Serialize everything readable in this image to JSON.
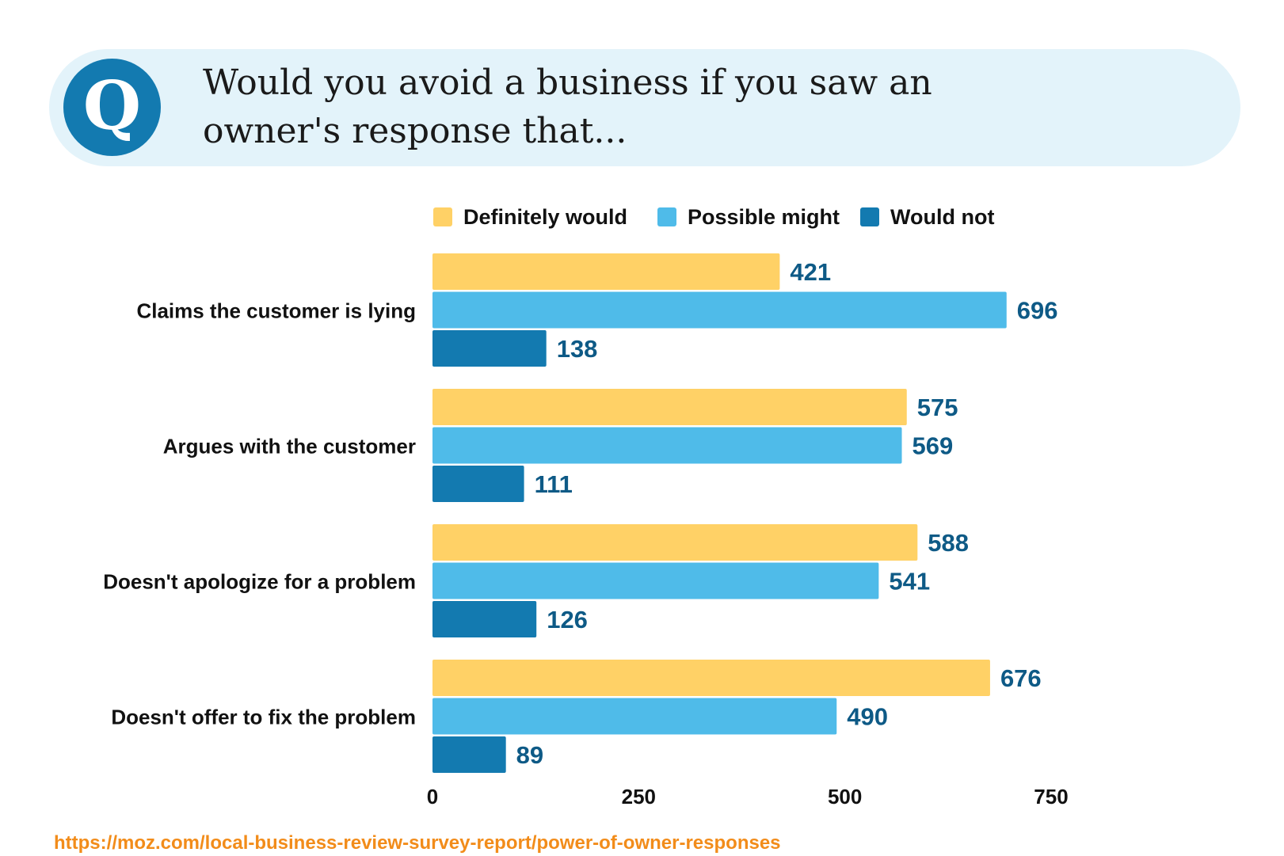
{
  "header": {
    "badge_letter": "Q",
    "question_line1": "Would you avoid a business if you saw an",
    "question_line2": "owner's response that..."
  },
  "legend": [
    {
      "label": "Definitely would",
      "color": "#ffd166"
    },
    {
      "label": "Possible might",
      "color": "#4fbbe9"
    },
    {
      "label": "Would not",
      "color": "#137ab0"
    }
  ],
  "colors": {
    "accent": "#137ab0",
    "banner_bg": "#e3f3fa",
    "value_label": "#0e5a86",
    "source_link": "#f28c1a"
  },
  "chart_data": {
    "type": "bar",
    "orientation": "horizontal",
    "title": "Would you avoid a business if you saw an owner's response that...",
    "categories": [
      "Claims the customer is lying",
      "Argues with the customer",
      "Doesn't apologize for a problem",
      "Doesn't offer to fix the problem"
    ],
    "series": [
      {
        "name": "Definitely would",
        "values": [
          421,
          575,
          588,
          676
        ]
      },
      {
        "name": "Possible might",
        "values": [
          696,
          569,
          541,
          490
        ]
      },
      {
        "name": "Would not",
        "values": [
          138,
          111,
          126,
          89
        ]
      }
    ],
    "xlim": [
      0,
      750
    ],
    "xticks": [
      0,
      250,
      500,
      750
    ],
    "grid": false,
    "legend_position": "top"
  },
  "source": {
    "url_text": "https://moz.com/local-business-review-survey-report/power-of-owner-responses"
  }
}
